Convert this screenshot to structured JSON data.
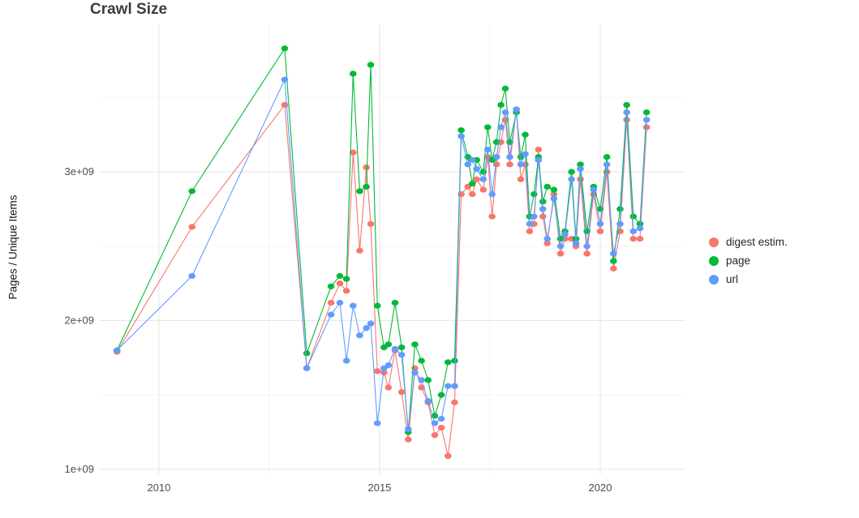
{
  "chart_data": {
    "type": "scatter",
    "title": "Crawl Size",
    "xlabel": "",
    "ylabel": "Pages / Unique Items",
    "legend_position": "right",
    "grid": "major+minor",
    "panel_background": "#ffffff",
    "grid_major_color": "#e7e7e7",
    "grid_minor_color": "#f2f2f2",
    "xlim": [
      2008.66,
      2021.93
    ],
    "ylim": [
      967000000.0,
      3992000000.0
    ],
    "xticks": [
      {
        "v": 2010,
        "label": "2010"
      },
      {
        "v": 2015,
        "label": "2015"
      },
      {
        "v": 2020,
        "label": "2020"
      }
    ],
    "x_minor": [
      2012.5,
      2017.5
    ],
    "yticks": [
      {
        "v": 1000000000.0,
        "label": "1e+09"
      },
      {
        "v": 2000000000.0,
        "label": "2e+09"
      },
      {
        "v": 3000000000.0,
        "label": "3e+09"
      }
    ],
    "y_minor": [
      1500000000.0,
      2500000000.0,
      3500000000.0
    ],
    "x": [
      2009.05,
      2010.75,
      2012.85,
      2013.35,
      2013.9,
      2014.1,
      2014.25,
      2014.4,
      2014.55,
      2014.7,
      2014.8,
      2014.95,
      2015.1,
      2015.2,
      2015.35,
      2015.5,
      2015.65,
      2015.8,
      2015.95,
      2016.1,
      2016.25,
      2016.4,
      2016.55,
      2016.7,
      2016.85,
      2017.0,
      2017.1,
      2017.2,
      2017.35,
      2017.45,
      2017.55,
      2017.65,
      2017.75,
      2017.85,
      2017.95,
      2018.1,
      2018.2,
      2018.3,
      2018.4,
      2018.5,
      2018.6,
      2018.7,
      2018.8,
      2018.95,
      2019.1,
      2019.2,
      2019.35,
      2019.45,
      2019.55,
      2019.7,
      2019.85,
      2020.0,
      2020.15,
      2020.3,
      2020.45,
      2020.6,
      2020.75,
      2020.9,
      2021.05
    ],
    "series": [
      {
        "name": "digest estim.",
        "color": "#F8766D",
        "values": [
          1790000000.0,
          2630000000.0,
          3450000000.0,
          1680000000.0,
          2120000000.0,
          2250000000.0,
          2200000000.0,
          3130000000.0,
          2470000000.0,
          3030000000.0,
          2650000000.0,
          1660000000.0,
          1650000000.0,
          1550000000.0,
          1800000000.0,
          1520000000.0,
          1200000000.0,
          1680000000.0,
          1550000000.0,
          1450000000.0,
          1230000000.0,
          1280000000.0,
          1090000000.0,
          1450000000.0,
          2850000000.0,
          2900000000.0,
          2850000000.0,
          2950000000.0,
          2880000000.0,
          3100000000.0,
          2700000000.0,
          3050000000.0,
          3200000000.0,
          3350000000.0,
          3050000000.0,
          3420000000.0,
          2950000000.0,
          3050000000.0,
          2600000000.0,
          2650000000.0,
          3150000000.0,
          2700000000.0,
          2520000000.0,
          2850000000.0,
          2450000000.0,
          2550000000.0,
          2550000000.0,
          2500000000.0,
          2950000000.0,
          2450000000.0,
          2850000000.0,
          2600000000.0,
          3000000000.0,
          2350000000.0,
          2600000000.0,
          3350000000.0,
          2550000000.0,
          2550000000.0,
          3300000000.0
        ]
      },
      {
        "name": "page",
        "color": "#00BA38",
        "values": [
          1800000000.0,
          2870000000.0,
          3830000000.0,
          1780000000.0,
          2230000000.0,
          2300000000.0,
          2280000000.0,
          3660000000.0,
          2870000000.0,
          2900000000.0,
          3720000000.0,
          2100000000.0,
          1820000000.0,
          1840000000.0,
          2120000000.0,
          1820000000.0,
          1250000000.0,
          1840000000.0,
          1730000000.0,
          1600000000.0,
          1360000000.0,
          1500000000.0,
          1720000000.0,
          1730000000.0,
          3280000000.0,
          3100000000.0,
          2920000000.0,
          3080000000.0,
          3000000000.0,
          3300000000.0,
          3080000000.0,
          3200000000.0,
          3450000000.0,
          3560000000.0,
          3200000000.0,
          3400000000.0,
          3100000000.0,
          3250000000.0,
          2700000000.0,
          2850000000.0,
          3100000000.0,
          2800000000.0,
          2900000000.0,
          2880000000.0,
          2550000000.0,
          2600000000.0,
          3000000000.0,
          2550000000.0,
          3050000000.0,
          2600000000.0,
          2900000000.0,
          2750000000.0,
          3100000000.0,
          2400000000.0,
          2750000000.0,
          3450000000.0,
          2700000000.0,
          2650000000.0,
          3400000000.0
        ]
      },
      {
        "name": "url",
        "color": "#619CFF",
        "values": [
          1800000000.0,
          2300000000.0,
          3620000000.0,
          1680000000.0,
          2040000000.0,
          2120000000.0,
          1730000000.0,
          2100000000.0,
          1900000000.0,
          1950000000.0,
          1980000000.0,
          1310000000.0,
          1680000000.0,
          1700000000.0,
          1810000000.0,
          1770000000.0,
          1270000000.0,
          1650000000.0,
          1600000000.0,
          1460000000.0,
          1310000000.0,
          1340000000.0,
          1560000000.0,
          1560000000.0,
          3240000000.0,
          3050000000.0,
          3080000000.0,
          3020000000.0,
          2950000000.0,
          3150000000.0,
          2850000000.0,
          3100000000.0,
          3300000000.0,
          3400000000.0,
          3100000000.0,
          3420000000.0,
          3050000000.0,
          3120000000.0,
          2650000000.0,
          2700000000.0,
          3080000000.0,
          2750000000.0,
          2550000000.0,
          2820000000.0,
          2500000000.0,
          2580000000.0,
          2950000000.0,
          2520000000.0,
          3020000000.0,
          2500000000.0,
          2880000000.0,
          2650000000.0,
          3050000000.0,
          2450000000.0,
          2650000000.0,
          3400000000.0,
          2600000000.0,
          2620000000.0,
          3350000000.0
        ]
      }
    ]
  }
}
